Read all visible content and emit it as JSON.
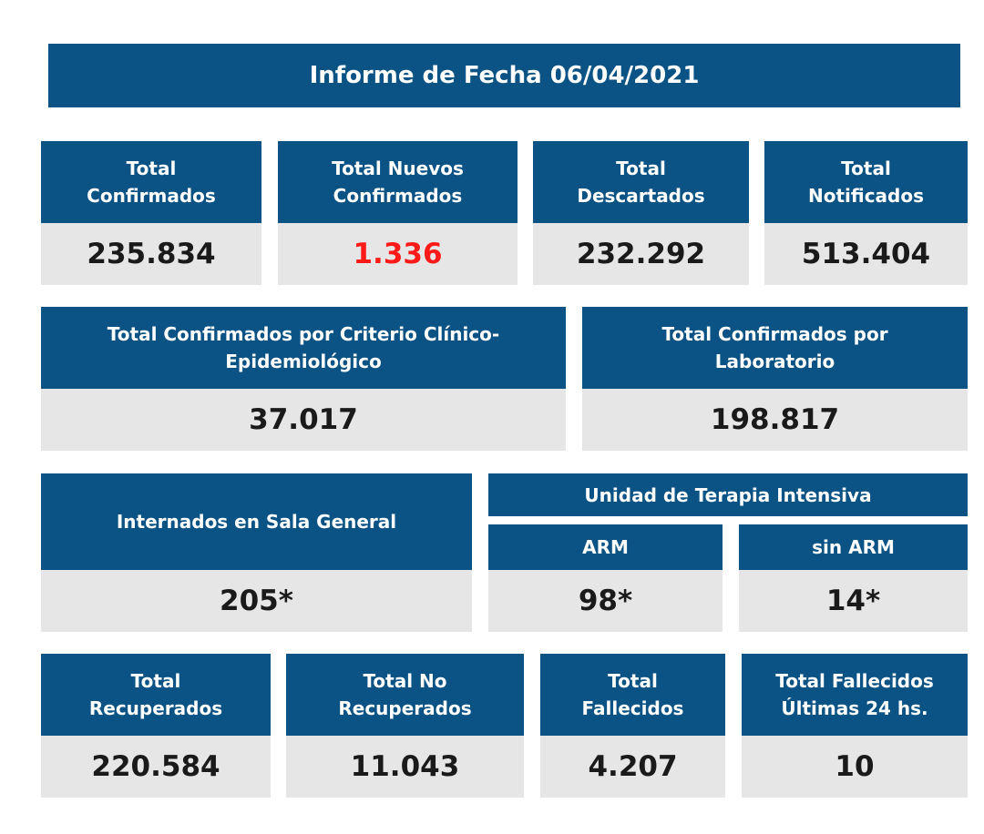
{
  "report_title": "Informe de Fecha 06/04/2021",
  "row1": [
    {
      "label": "Total\nConfirmados",
      "value": "235.834"
    },
    {
      "label": "Total Nuevos\nConfirmados",
      "value": "1.336",
      "value_color": "#ff1a1a"
    },
    {
      "label": "Total\nDescartados",
      "value": "232.292"
    },
    {
      "label": "Total\nNotificados",
      "value": "513.404"
    }
  ],
  "row2": [
    {
      "label": "Total Confirmados por Criterio Clínico-\nEpidemiológico",
      "value": "37.017"
    },
    {
      "label": "Total Confirmados por\nLaboratorio",
      "value": "198.817"
    }
  ],
  "row3": {
    "general": {
      "label": "Internados en Sala General",
      "value": "205*"
    },
    "uti": {
      "label": "Unidad de Terapia Intensiva",
      "arm": {
        "label": "ARM",
        "value": "98*"
      },
      "sin_arm": {
        "label": "sin ARM",
        "value": "14*"
      }
    }
  },
  "row4": [
    {
      "label": "Total\nRecuperados",
      "value": "220.584"
    },
    {
      "label": "Total No\nRecuperados",
      "value": "11.043"
    },
    {
      "label": "Total\nFallecidos",
      "value": "4.207"
    },
    {
      "label": "Total Fallecidos\nÚltimas 24 hs.",
      "value": "10"
    }
  ],
  "colors": {
    "header_bg": "#0b5384",
    "value_bg": "#e6e6e6",
    "highlight": "#ff1a1a"
  }
}
